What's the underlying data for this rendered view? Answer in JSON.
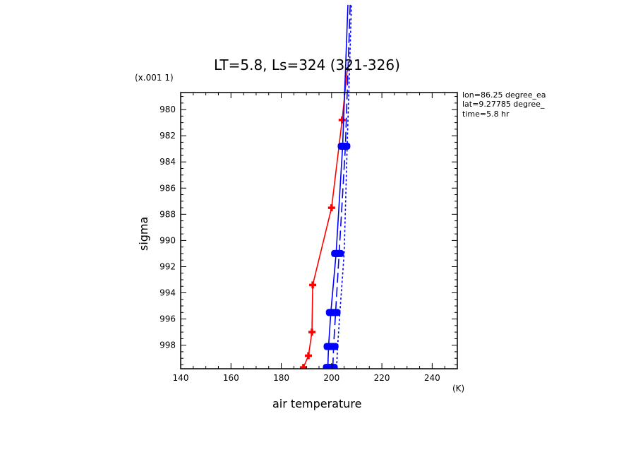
{
  "title": "LT=5.8, Ls=324 (321-326)",
  "y_scale_note": "(x.001 1)",
  "x_unit": "(K)",
  "info_lines": [
    "lon=86.25 degree_ea",
    "lat=9.27785 degree_",
    "time=5.8 hr"
  ],
  "chart_data": {
    "type": "line",
    "title": "LT=5.8, Ls=324 (321-326)",
    "xlabel": "air temperature",
    "ylabel": "sigma",
    "xlim": [
      140,
      250
    ],
    "ylim": [
      978.7,
      999.8
    ],
    "y_inverted": true,
    "grid": false,
    "x_ticks": [
      140,
      160,
      180,
      200,
      220,
      240
    ],
    "y_ticks": [
      980,
      982,
      984,
      986,
      988,
      990,
      992,
      994,
      996,
      998
    ],
    "series": [
      {
        "color": "#ff0000",
        "line": "solid",
        "marker": "plus",
        "points": [
          [
            188.8,
            999.7
          ],
          [
            190.8,
            998.8
          ],
          [
            192.2,
            997.0
          ],
          [
            192.5,
            993.4
          ],
          [
            200.0,
            987.5
          ],
          [
            204.2,
            980.8
          ],
          [
            206.2,
            977.0
          ]
        ]
      },
      {
        "color": "#0000ff",
        "line": "solid",
        "marker": "bar",
        "points": [
          [
            198.5,
            999.7
          ],
          [
            198.8,
            998.1
          ],
          [
            199.7,
            995.5
          ],
          [
            201.8,
            991.0
          ],
          [
            204.4,
            982.8
          ],
          [
            206.5,
            972.0
          ]
        ]
      },
      {
        "color": "#0000ff",
        "line": "dashed",
        "marker": "bar",
        "points": [
          [
            200.5,
            999.7
          ],
          [
            200.8,
            998.1
          ],
          [
            201.6,
            995.5
          ],
          [
            203.0,
            991.0
          ],
          [
            205.5,
            982.8
          ],
          [
            207.4,
            972.0
          ]
        ]
      },
      {
        "color": "#0000ff",
        "line": "dotted",
        "marker": "none",
        "points": [
          [
            202.0,
            999.7
          ],
          [
            202.4,
            998.1
          ],
          [
            203.3,
            995.5
          ],
          [
            205.0,
            991.0
          ],
          [
            206.2,
            982.8
          ],
          [
            207.9,
            972.0
          ]
        ]
      }
    ]
  }
}
